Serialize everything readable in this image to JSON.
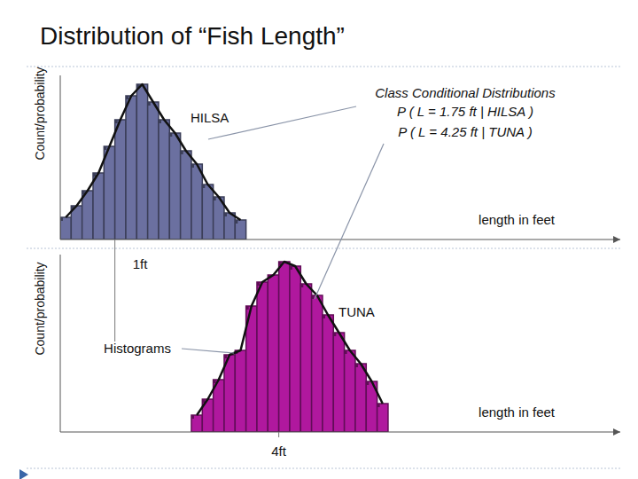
{
  "chart_data": [
    {
      "type": "histogram",
      "title": "Distribution of “Fish Length”",
      "ylabel": "Count/probability",
      "xlabel": "length in feet",
      "series": [
        {
          "name": "HILSA",
          "color": "#6b70a0",
          "values": [
            25,
            38,
            55,
            75,
            105,
            135,
            162,
            175,
            155,
            135,
            120,
            100,
            85,
            62,
            48,
            30,
            22
          ]
        }
      ],
      "bins": [
        0,
        0.2,
        0.4,
        0.6,
        0.8,
        1,
        1.2,
        1.4,
        1.6,
        1.8,
        2,
        2.2,
        2.4,
        2.6,
        2.8,
        3,
        3.2,
        3.4
      ],
      "xlim": [
        0,
        10.25
      ],
      "ylim": [
        0,
        185
      ],
      "xticks": [
        {
          "value": 1,
          "label": "1ft"
        }
      ],
      "tick_labels": "x",
      "annotations": [
        "Class Conditional Distributions",
        "P ( L = 1.75 ft | HILSA )",
        "P ( L = 4.25 ft | TUNA )"
      ]
    },
    {
      "type": "histogram",
      "ylabel": "Count/probability",
      "xlabel": "length in feet",
      "series": [
        {
          "name": "TUNA",
          "color": "#b0189e",
          "values": [
            19,
            37,
            59,
            87,
            92,
            142,
            169,
            177,
            192,
            187,
            167,
            154,
            132,
            112,
            92,
            77,
            57,
            32
          ]
        }
      ],
      "bins": [
        2.4,
        2.6,
        2.8,
        3,
        3.2,
        3.4,
        3.6,
        3.8,
        4,
        4.2,
        4.4,
        4.6,
        4.8,
        5,
        5.2,
        5.4,
        5.6,
        5.8,
        6
      ],
      "xlim": [
        0,
        10.25
      ],
      "ylim": [
        0,
        200
      ],
      "xticks": [
        {
          "value": 4,
          "label": "4ft"
        }
      ],
      "tick_labels": "x",
      "annotations": [
        "Histograms"
      ]
    }
  ]
}
